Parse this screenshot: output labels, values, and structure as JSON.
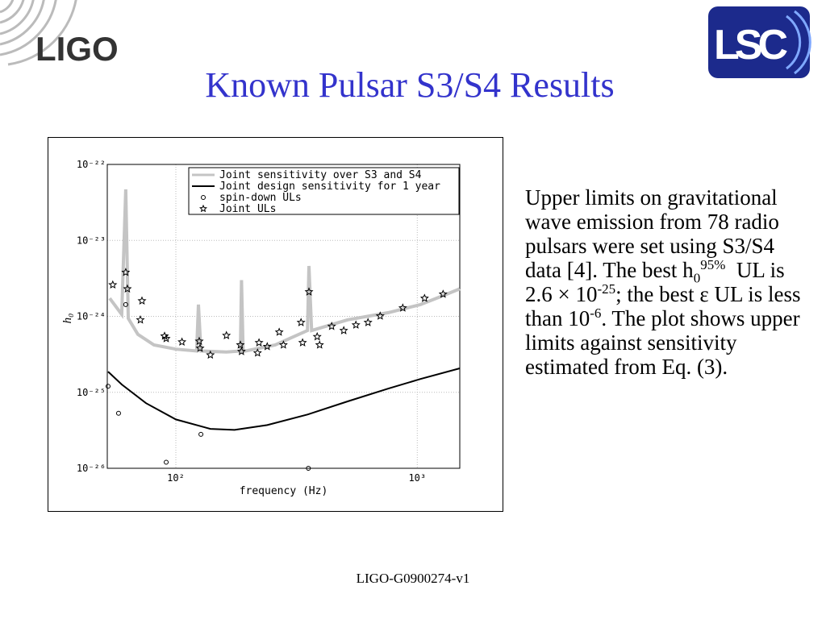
{
  "header": {
    "logo_left": "LIGO",
    "logo_right": "LSC",
    "title": "Known Pulsar S3/S4 Results"
  },
  "body": {
    "runs": [
      {
        "text": "Upper limits on gravitational wave emission from 78 radio pulsars were set using S3/S4 data [4]. The best h"
      },
      {
        "sub": "0"
      },
      {
        "sup": "95%"
      },
      {
        "text": "  UL is 2.6 × 10"
      },
      {
        "sup": "-25"
      },
      {
        "text": "; the best ε UL is less than 10"
      },
      {
        "sup": "-6"
      },
      {
        "text": ". The plot shows upper limits against sensitivity estimated from Eq. (3)."
      }
    ]
  },
  "footer": {
    "text": "LIGO-G0900274-v1"
  },
  "chart_data": {
    "type": "line",
    "x_label": "frequency (Hz)",
    "y_label": "h₀",
    "log_x": true,
    "log_y": true,
    "grid": true,
    "legend": "upper right",
    "xlim": [
      52,
      1500
    ],
    "ylim": [
      1e-26,
      1e-22
    ],
    "xticks": [
      {
        "value": 100,
        "label": "10²"
      },
      {
        "value": 1000,
        "label": "10³"
      }
    ],
    "yticks": [
      {
        "value": 1e-26,
        "label": "10⁻²⁶"
      },
      {
        "value": 1e-25,
        "label": "10⁻²⁵"
      },
      {
        "value": 1e-24,
        "label": "10⁻²⁴"
      },
      {
        "value": 1e-23,
        "label": "10⁻²³"
      },
      {
        "value": 1e-22,
        "label": "10⁻²²"
      }
    ],
    "series": [
      {
        "name": "Joint sensitivity over S3 and S4",
        "color": "#c4c4c4",
        "marker": "line",
        "x": [
          53.2,
          59.7,
          62.0,
          63.5,
          69.6,
          81.2,
          100,
          122,
          124,
          127,
          162,
          185,
          187,
          190,
          258,
          351,
          356,
          365,
          515,
          759,
          1031,
          1250,
          1500
        ],
        "values": [
          1.73e-24,
          1.06e-24,
          4.7e-23,
          9.4e-25,
          5.8e-25,
          4.2e-25,
          3.7e-25,
          3.5e-25,
          1.43e-24,
          3.5e-25,
          3.4e-25,
          3.5e-25,
          3e-24,
          3.45e-25,
          4.2e-25,
          6.5e-25,
          4.6e-24,
          6.5e-25,
          9e-25,
          1.12e-24,
          1.43e-24,
          1.82e-24,
          2.3e-24
        ]
      },
      {
        "name": "Joint design sensitivity for 1 year",
        "color": "#000000",
        "marker": "line",
        "x": [
          52.4,
          59.7,
          75.2,
          100,
          139,
          175,
          239,
          351,
          515,
          759,
          1031,
          1500
        ],
        "values": [
          1.87e-25,
          1.27e-25,
          7.2e-26,
          4.4e-26,
          3.3e-26,
          3.2e-26,
          3.7e-26,
          5.1e-26,
          7.6e-26,
          1.12e-25,
          1.5e-25,
          2.07e-25
        ]
      },
      {
        "name": "spin-down ULs",
        "color": "#000000",
        "marker": "circle",
        "x": [
          52.4,
          57.9,
          62.0,
          127,
          91.2,
          354
        ],
        "values": [
          1.2e-25,
          5.3e-26,
          1.43e-24,
          2.8e-26,
          1.2e-26,
          1e-26
        ]
      },
      {
        "name": "Joint ULs",
        "color": "#000000",
        "marker": "star",
        "x": [
          54.8,
          62.0,
          63.0,
          72.4,
          71.3,
          89.8,
          91.2,
          106,
          125,
          126,
          139,
          162,
          185,
          187,
          218,
          221,
          239,
          268,
          279,
          330,
          335,
          356,
          385,
          394,
          442,
          496,
          557,
          625,
          702,
          871,
          1072,
          1279
        ],
        "values": [
          2.6e-24,
          3.8e-24,
          2.3e-24,
          1.6e-24,
          9e-25,
          5.5e-25,
          5.1e-25,
          4.6e-25,
          4.7e-25,
          3.8e-25,
          3.1e-25,
          5.6e-25,
          4.2e-25,
          3.45e-25,
          3.3e-25,
          4.5e-25,
          4e-25,
          6.2e-25,
          4.2e-25,
          8.3e-25,
          4.5e-25,
          2.1e-24,
          5.4e-25,
          4.2e-25,
          7.4e-25,
          6.5e-25,
          7.7e-25,
          8.3e-25,
          1.01e-24,
          1.29e-24,
          1.73e-24,
          1.96e-24
        ]
      }
    ]
  }
}
